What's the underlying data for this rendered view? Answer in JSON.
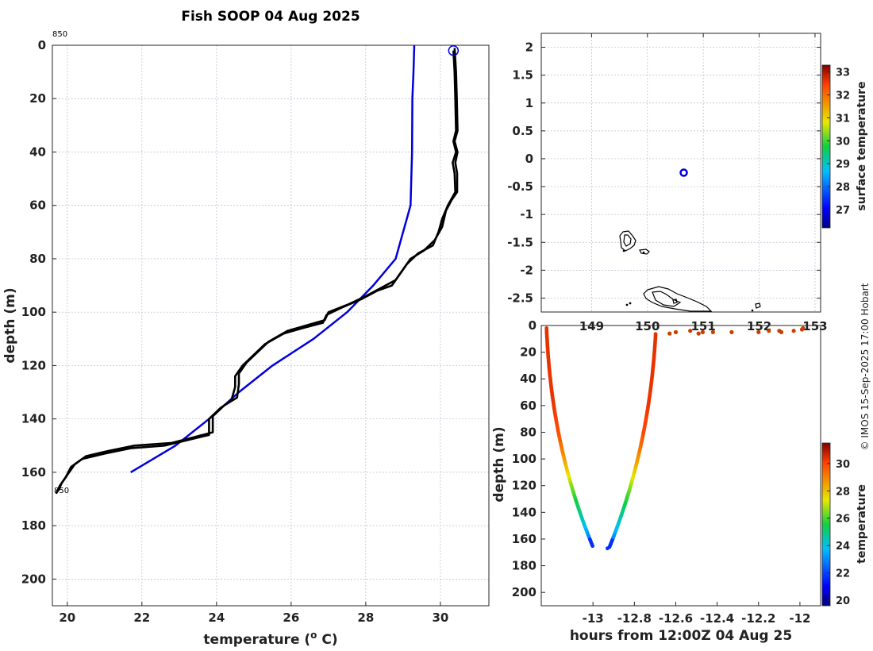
{
  "title": "Fish SOOP 04 Aug 2025",
  "credit": "© IMOS 15-Sep-2025 17:00 Hobart",
  "colors": {
    "profile_line": "#000000",
    "reference_line": "#0000dd",
    "position_marker": "#0000dd",
    "grid": "#b8bccc"
  },
  "chart_data": [
    {
      "name": "profile",
      "type": "line",
      "xlabel": "temperature (",
      "xlabel_sup": "o",
      "xlabel_unit": " C)",
      "ylabel": "depth (m)",
      "xlim": [
        19.6,
        31.3
      ],
      "ylim": [
        210,
        0
      ],
      "xticks": [
        20,
        22,
        24,
        26,
        28,
        30
      ],
      "yticks": [
        0,
        20,
        40,
        60,
        80,
        100,
        120,
        140,
        160,
        180,
        200
      ],
      "annotations": [
        "850",
        "850"
      ],
      "series": [
        {
          "name": "climatology",
          "color": "#0000dd",
          "points": [
            [
              29.3,
              0
            ],
            [
              29.28,
              10
            ],
            [
              29.25,
              20
            ],
            [
              29.24,
              40
            ],
            [
              29.2,
              60
            ],
            [
              28.8,
              80
            ],
            [
              28.2,
              90
            ],
            [
              27.5,
              100
            ],
            [
              26.6,
              110
            ],
            [
              25.5,
              120
            ],
            [
              24.6,
              130
            ],
            [
              23.8,
              140
            ],
            [
              22.9,
              150
            ],
            [
              21.7,
              160
            ]
          ]
        },
        {
          "name": "profile_a",
          "color": "#000000",
          "points": [
            [
              30.35,
              2
            ],
            [
              30.38,
              10
            ],
            [
              30.4,
              20
            ],
            [
              30.42,
              32
            ],
            [
              30.35,
              36
            ],
            [
              30.42,
              40
            ],
            [
              30.33,
              44
            ],
            [
              30.38,
              48
            ],
            [
              30.4,
              55
            ],
            [
              30.2,
              60
            ],
            [
              30.05,
              65
            ],
            [
              29.95,
              70
            ],
            [
              29.8,
              75
            ],
            [
              29.4,
              78
            ],
            [
              29.1,
              82
            ],
            [
              28.9,
              86
            ],
            [
              28.7,
              90
            ],
            [
              28.3,
              92
            ],
            [
              27.9,
              95
            ],
            [
              27.4,
              98
            ],
            [
              26.95,
              101
            ],
            [
              26.85,
              104
            ],
            [
              26.3,
              106
            ],
            [
              25.8,
              108
            ],
            [
              25.3,
              112
            ],
            [
              25.0,
              116
            ],
            [
              24.7,
              120
            ],
            [
              24.5,
              124
            ],
            [
              24.5,
              128
            ],
            [
              24.4,
              133
            ],
            [
              24.1,
              136
            ],
            [
              23.8,
              140
            ],
            [
              23.8,
              146
            ],
            [
              23.2,
              148
            ],
            [
              22.6,
              150
            ],
            [
              21.7,
              151
            ],
            [
              21.0,
              153
            ],
            [
              20.4,
              155
            ],
            [
              20.1,
              158
            ],
            [
              19.95,
              162
            ],
            [
              19.8,
              165
            ],
            [
              19.7,
              168
            ]
          ]
        },
        {
          "name": "profile_b",
          "color": "#000000",
          "points": [
            [
              30.38,
              1
            ],
            [
              30.42,
              10
            ],
            [
              30.44,
              20
            ],
            [
              30.46,
              32
            ],
            [
              30.38,
              36
            ],
            [
              30.46,
              40
            ],
            [
              30.4,
              44
            ],
            [
              30.45,
              48
            ],
            [
              30.45,
              55
            ],
            [
              30.3,
              58
            ],
            [
              30.15,
              62
            ],
            [
              30.05,
              68
            ],
            [
              29.85,
              73
            ],
            [
              29.55,
              77
            ],
            [
              29.2,
              80
            ],
            [
              29.0,
              84
            ],
            [
              28.8,
              88
            ],
            [
              28.4,
              91
            ],
            [
              28.0,
              94
            ],
            [
              27.55,
              97
            ],
            [
              27.0,
              100
            ],
            [
              26.9,
              103
            ],
            [
              26.4,
              105
            ],
            [
              25.9,
              107
            ],
            [
              25.4,
              111
            ],
            [
              25.1,
              115
            ],
            [
              24.8,
              119
            ],
            [
              24.6,
              123
            ],
            [
              24.6,
              127
            ],
            [
              24.55,
              132
            ],
            [
              24.2,
              135
            ],
            [
              23.9,
              139
            ],
            [
              23.9,
              145
            ],
            [
              23.35,
              147
            ],
            [
              22.8,
              149
            ],
            [
              21.8,
              150
            ],
            [
              21.1,
              152
            ],
            [
              20.5,
              154
            ],
            [
              20.2,
              157
            ],
            [
              20.0,
              161
            ],
            [
              19.85,
              164
            ],
            [
              19.75,
              167
            ]
          ]
        }
      ],
      "marker": {
        "x": 30.35,
        "y": 2
      }
    },
    {
      "name": "map",
      "type": "scatter",
      "xlim": [
        148.1,
        153.1
      ],
      "ylim": [
        -2.75,
        2.25
      ],
      "xticks": [
        149,
        150,
        151,
        152,
        153
      ],
      "xtick_labels": [
        "149",
        "150",
        "151",
        "152",
        "153"
      ],
      "yticks": [
        2,
        1.5,
        1,
        0.5,
        0,
        -0.5,
        -1,
        -1.5,
        -2,
        -2.5
      ],
      "ytick_labels": [
        "2",
        "1.5",
        "1",
        "0.5",
        "0",
        "-0.5",
        "-1",
        "-1.5",
        "-2",
        "-2.5"
      ],
      "position": {
        "lon": 150.65,
        "lat": -0.25
      },
      "colorbar": {
        "label": "surface temperature",
        "range": [
          26.2,
          33.3
        ],
        "ticks": [
          "27",
          "28",
          "29",
          "30",
          "31",
          "32",
          "33"
        ],
        "tick_values": [
          27,
          28,
          29,
          30,
          31,
          32,
          33
        ]
      }
    },
    {
      "name": "section",
      "type": "scatter",
      "xlabel": "hours from 12:00Z 04 Aug 25",
      "ylabel": "depth (m)",
      "xlim": [
        -13.25,
        -11.9
      ],
      "ylim": [
        210,
        0
      ],
      "xticks": [
        -13,
        -12.8,
        -12.6,
        -12.4,
        -12.2,
        -12
      ],
      "xtick_labels": [
        "-13",
        "-12.8",
        "-12.6",
        "-12.4",
        "-12.2",
        "-12"
      ],
      "yticks": [
        0,
        20,
        40,
        60,
        80,
        100,
        120,
        140,
        160,
        180,
        200
      ],
      "surface_points": [
        [
          -12.63,
          6
        ],
        [
          -12.6,
          5
        ],
        [
          -12.53,
          4
        ],
        [
          -12.49,
          6
        ],
        [
          -12.47,
          5
        ],
        [
          -12.42,
          5
        ],
        [
          -12.33,
          5
        ],
        [
          -12.2,
          5
        ],
        [
          -12.15,
          4
        ],
        [
          -12.1,
          4
        ],
        [
          -12.09,
          5
        ],
        [
          -12.03,
          4
        ],
        [
          -11.99,
          3
        ],
        [
          -11.985,
          2
        ]
      ],
      "colorbar": {
        "label": "temperature",
        "range": [
          19.6,
          31.5
        ],
        "ticks": [
          "20",
          "22",
          "24",
          "26",
          "28",
          "30"
        ],
        "tick_values": [
          20,
          22,
          24,
          26,
          28,
          30
        ]
      }
    }
  ]
}
